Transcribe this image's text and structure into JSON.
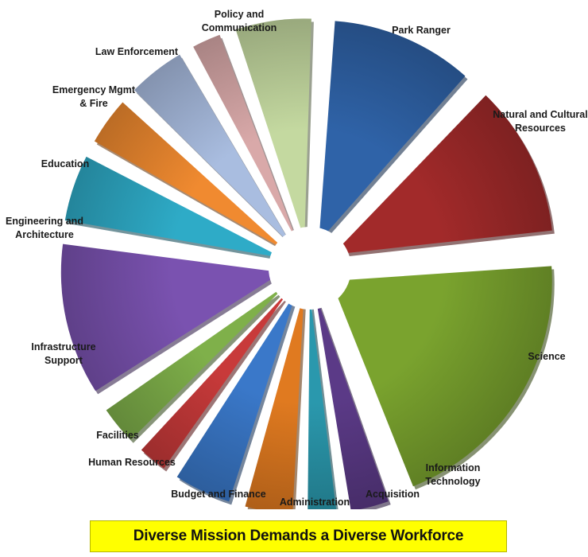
{
  "chart_data": {
    "type": "pie",
    "title": "",
    "slices": [
      {
        "label": "Park Ranger",
        "value": 8,
        "color": "#2f63a8"
      },
      {
        "label": "Natural and Cultural Resources",
        "value": 8.5,
        "color": "#a22a2a"
      },
      {
        "label": "Science",
        "value": 15,
        "color": "#7aa32e"
      },
      {
        "label": "Information Technology",
        "value": 2.5,
        "color": "#5b3a87"
      },
      {
        "label": "Acquisition",
        "value": 2,
        "color": "#2a98ad"
      },
      {
        "label": "Administration",
        "value": 3,
        "color": "#e07a20"
      },
      {
        "label": "Budget and Finance",
        "value": 3.5,
        "color": "#3a78c9"
      },
      {
        "label": "Human Resources",
        "value": 2,
        "color": "#c83a3a"
      },
      {
        "label": "Facilities",
        "value": 2.5,
        "color": "#7fb04a"
      },
      {
        "label": "Infrastructure Support",
        "value": 8.5,
        "color": "#7a52b0"
      },
      {
        "label": "Engineering and Architecture",
        "value": 4,
        "color": "#2eabc7"
      },
      {
        "label": "Education",
        "value": 3,
        "color": "#f08a30"
      },
      {
        "label": "Emergency Mgmt & Fire",
        "value": 3.5,
        "color": "#a9bde0"
      },
      {
        "label": "Law Enforcement",
        "value": 2,
        "color": "#d9a9a9"
      },
      {
        "label": "Policy and Communication",
        "value": 4.5,
        "color": "#c4d9a0"
      }
    ],
    "legend": "none"
  },
  "banner": {
    "text": "Diverse Mission Demands a Diverse Workforce"
  }
}
